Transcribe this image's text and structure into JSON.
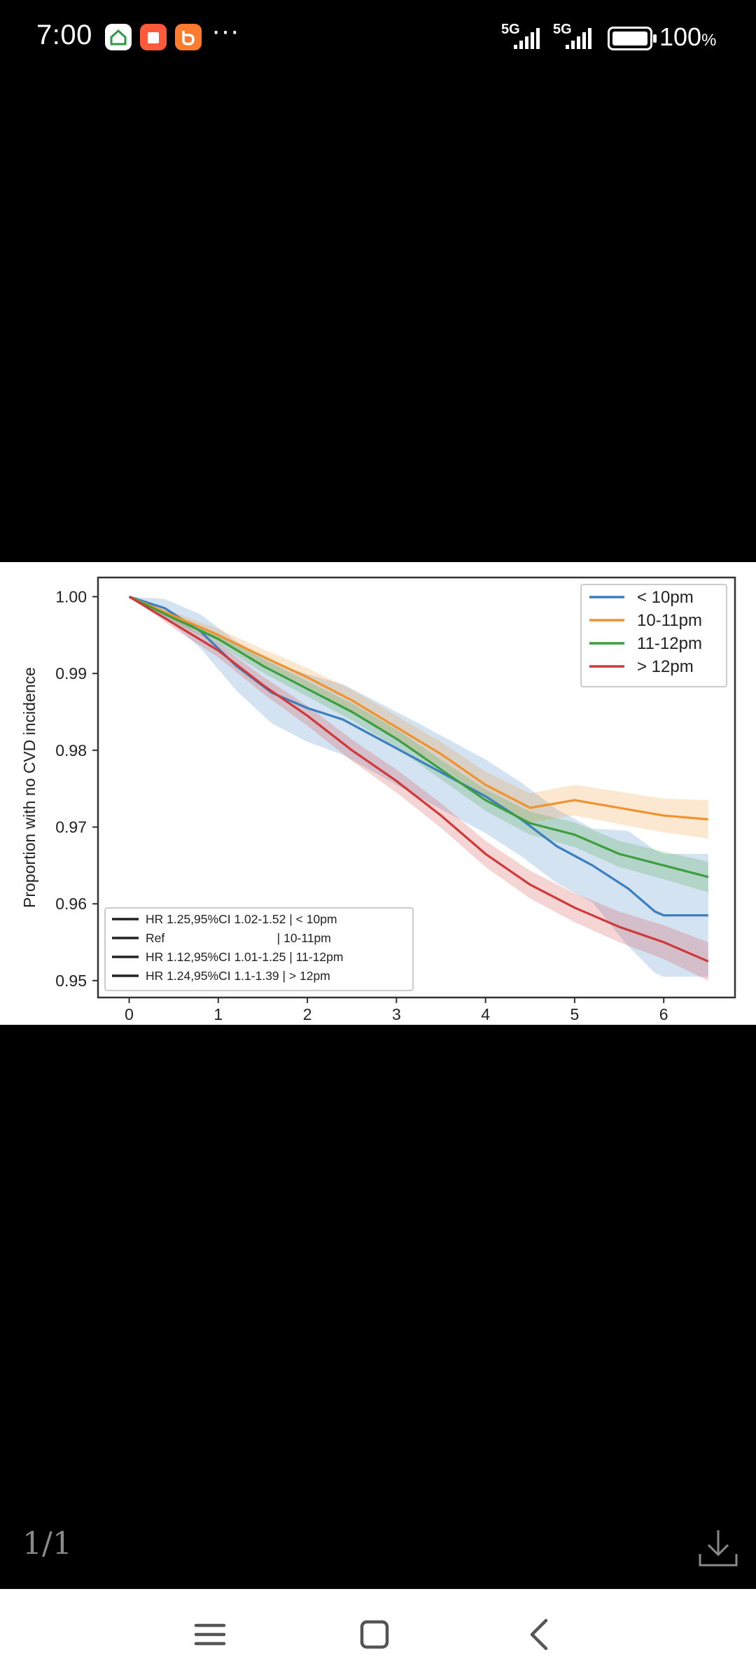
{
  "status": {
    "time": "7:00",
    "more": "···",
    "network1": "5G",
    "network2": "5G",
    "battery": "100",
    "battery_unit": "%",
    "icons": [
      "home-app-icon",
      "red-app-icon",
      "orange-app-icon"
    ]
  },
  "viewer": {
    "page": "1/1"
  },
  "chart_data": {
    "type": "line",
    "ylabel": "Proportion with no CVD incidence",
    "xlabel": "",
    "xlim": [
      -0.35,
      6.8
    ],
    "ylim": [
      0.9478,
      1.0025
    ],
    "x_ticks": [
      "0",
      "1",
      "2",
      "3",
      "4",
      "5",
      "6"
    ],
    "y_ticks": [
      "0.95",
      "0.96",
      "0.97",
      "0.98",
      "0.99",
      "1.00"
    ],
    "legend_position": "top-right",
    "series": [
      {
        "name": "< 10pm",
        "color": "#3b7fbf",
        "x": [
          0,
          0.4,
          0.8,
          1.2,
          1.6,
          2.0,
          2.4,
          2.8,
          3.2,
          3.6,
          4.0,
          4.4,
          4.8,
          5.2,
          5.6,
          5.9,
          6.0,
          6.5
        ],
        "y": [
          1.0,
          0.9985,
          0.9955,
          0.991,
          0.9875,
          0.9855,
          0.984,
          0.9815,
          0.979,
          0.9765,
          0.974,
          0.971,
          0.9675,
          0.965,
          0.962,
          0.959,
          0.9585,
          0.9585
        ],
        "ci_half": [
          0,
          0.0012,
          0.0022,
          0.0032,
          0.004,
          0.0044,
          0.0046,
          0.0047,
          0.0048,
          0.0048,
          0.0048,
          0.0048,
          0.0048,
          0.0048,
          0.0075,
          0.008,
          0.008,
          0.008
        ]
      },
      {
        "name": "10-11pm",
        "color": "#f0922e",
        "x": [
          0,
          0.5,
          1.0,
          1.5,
          2.0,
          2.5,
          3.0,
          3.5,
          4.0,
          4.5,
          5.0,
          5.5,
          6.0,
          6.5
        ],
        "y": [
          1.0,
          0.9975,
          0.995,
          0.9922,
          0.9895,
          0.9865,
          0.983,
          0.9795,
          0.9755,
          0.9725,
          0.9735,
          0.9725,
          0.9715,
          0.971
        ],
        "ci_half": [
          0,
          0.0005,
          0.0008,
          0.001,
          0.0012,
          0.0014,
          0.0015,
          0.0016,
          0.0017,
          0.0019,
          0.002,
          0.0021,
          0.0022,
          0.0025
        ]
      },
      {
        "name": "11-12pm",
        "color": "#3c9e3c",
        "x": [
          0,
          0.5,
          1.0,
          1.5,
          2.0,
          2.5,
          3.0,
          3.5,
          4.0,
          4.5,
          5.0,
          5.5,
          6.0,
          6.5
        ],
        "y": [
          1.0,
          0.9972,
          0.9945,
          0.991,
          0.988,
          0.985,
          0.9815,
          0.9775,
          0.9735,
          0.9705,
          0.969,
          0.9665,
          0.965,
          0.9635
        ],
        "ci_half": [
          0,
          0.0005,
          0.0007,
          0.0009,
          0.001,
          0.0011,
          0.0012,
          0.0013,
          0.0014,
          0.0015,
          0.0016,
          0.0017,
          0.0018,
          0.002
        ]
      },
      {
        "name": "> 12pm",
        "color": "#d0393a",
        "x": [
          0,
          0.5,
          1.0,
          1.5,
          2.0,
          2.5,
          3.0,
          3.5,
          4.0,
          4.5,
          5.0,
          5.5,
          6.0,
          6.5
        ],
        "y": [
          1.0,
          0.9965,
          0.993,
          0.9885,
          0.9845,
          0.98,
          0.976,
          0.9715,
          0.9665,
          0.9625,
          0.9595,
          0.957,
          0.955,
          0.9525
        ],
        "ci_half": [
          0,
          0.0006,
          0.0009,
          0.0011,
          0.0013,
          0.0014,
          0.0015,
          0.0016,
          0.0017,
          0.0018,
          0.0019,
          0.002,
          0.0022,
          0.0025
        ]
      }
    ],
    "annotations": [
      "HR 1.25,95%CI 1.02-1.52 | < 10pm",
      "Ref                                 | 10-11pm",
      "HR 1.12,95%CI 1.01-1.25 | 11-12pm",
      "HR 1.24,95%CI 1.1-1.39 | > 12pm"
    ]
  }
}
